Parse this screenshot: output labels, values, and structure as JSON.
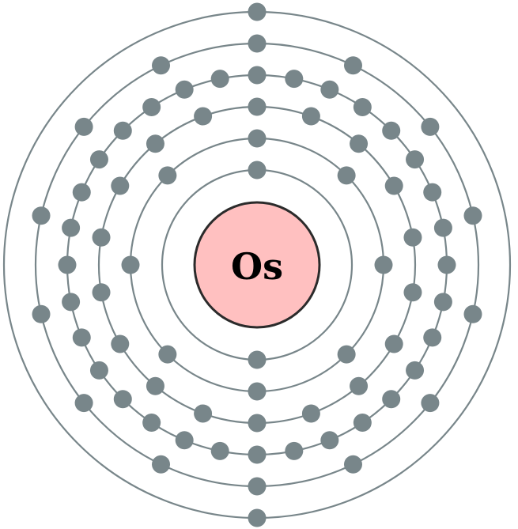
{
  "element": {
    "symbol": "Os",
    "shells": [
      2,
      8,
      18,
      32,
      14,
      2
    ]
  },
  "colors": {
    "shell_stroke": "#78868a",
    "electron_fill": "#78868a",
    "nucleus_fill": "#ffc0c0",
    "nucleus_stroke": "#2b2b2b",
    "symbol_text": "#000000",
    "background": "#ffffff"
  }
}
